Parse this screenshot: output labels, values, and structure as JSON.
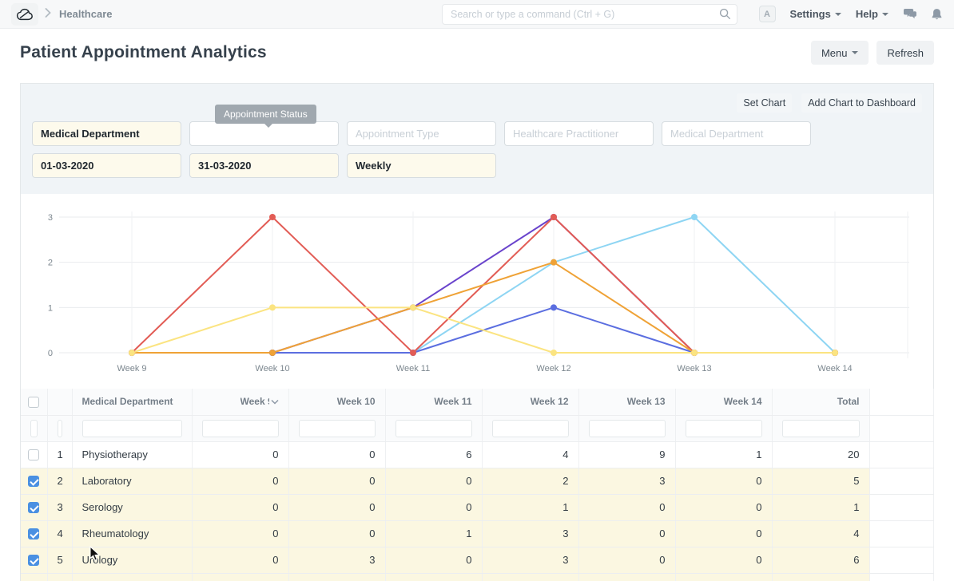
{
  "navbar": {
    "breadcrumb": "Healthcare",
    "search_placeholder": "Search or type a command (Ctrl + G)",
    "avatar_letter": "A",
    "settings_label": "Settings",
    "help_label": "Help",
    "icons": [
      "app-logo-cloud-icon",
      "chevron-right-icon",
      "search-icon",
      "chat-icon",
      "bell-icon"
    ]
  },
  "page_header": {
    "title": "Patient Appointment Analytics",
    "menu_label": "Menu",
    "refresh_label": "Refresh"
  },
  "report_actions": {
    "set_chart_label": "Set Chart",
    "add_chart_label": "Add Chart to Dashboard"
  },
  "tooltip_text": "Appointment Status",
  "filters": {
    "row1": [
      {
        "value": "Medical Department",
        "placeholder": "",
        "style": "filled",
        "name": "filter-medical-department"
      },
      {
        "value": "",
        "placeholder": "",
        "style": "empty",
        "name": "filter-appointment-status"
      },
      {
        "value": "",
        "placeholder": "Appointment Type",
        "style": "empty",
        "name": "filter-appointment-type"
      },
      {
        "value": "",
        "placeholder": "Healthcare Practitioner",
        "style": "empty",
        "name": "filter-healthcare-practitioner"
      },
      {
        "value": "",
        "placeholder": "Medical Department",
        "style": "empty",
        "name": "filter-medical-department-2"
      }
    ],
    "row2": [
      {
        "value": "01-03-2020",
        "placeholder": "",
        "style": "filled",
        "name": "filter-from-date"
      },
      {
        "value": "31-03-2020",
        "placeholder": "",
        "style": "filled",
        "name": "filter-to-date"
      },
      {
        "value": "Weekly",
        "placeholder": "",
        "style": "filled",
        "name": "filter-range-select"
      }
    ]
  },
  "chart_data": {
    "type": "line",
    "title": "",
    "x": [
      "Week 9",
      "Week 10",
      "Week 11",
      "Week 12",
      "Week 13",
      "Week 14"
    ],
    "yticks": [
      0,
      1,
      2,
      3
    ],
    "ylim": [
      0,
      3
    ],
    "grid": true,
    "legend_position": "none",
    "series": [
      {
        "name": "Laboratory",
        "color": "#8ed5f3",
        "values": [
          0,
          0,
          0,
          2,
          3,
          0
        ]
      },
      {
        "name": "Serology",
        "color": "#5b6ee0",
        "values": [
          0,
          0,
          0,
          1,
          0,
          0
        ]
      },
      {
        "name": "Rheumatology",
        "color": "#6a44cc",
        "values": [
          0,
          0,
          1,
          3,
          0,
          0
        ]
      },
      {
        "name": "Urology",
        "color": "#e25c55",
        "values": [
          0,
          3,
          0,
          3,
          0,
          0
        ]
      },
      {
        "name": "series-orange",
        "color": "#efa236",
        "values": [
          0,
          0,
          1,
          2,
          0,
          0
        ]
      },
      {
        "name": "series-yellow",
        "color": "#fbe481",
        "values": [
          0,
          1,
          1,
          0,
          0,
          0
        ]
      }
    ]
  },
  "table": {
    "columns": [
      "",
      "",
      "Medical Department",
      "Week 9",
      "Week 10",
      "Week 11",
      "Week 12",
      "Week 13",
      "Week 14",
      "Total"
    ],
    "sorted_column": "Week 9",
    "rows": [
      {
        "idx": 1,
        "department": "Physiotherapy",
        "checked": false,
        "values": [
          0,
          0,
          6,
          4,
          9,
          1
        ],
        "total": 20
      },
      {
        "idx": 2,
        "department": "Laboratory",
        "checked": true,
        "values": [
          0,
          0,
          0,
          2,
          3,
          0
        ],
        "total": 5
      },
      {
        "idx": 3,
        "department": "Serology",
        "checked": true,
        "values": [
          0,
          0,
          0,
          1,
          0,
          0
        ],
        "total": 1
      },
      {
        "idx": 4,
        "department": "Rheumatology",
        "checked": true,
        "values": [
          0,
          0,
          1,
          3,
          0,
          0
        ],
        "total": 4
      },
      {
        "idx": 5,
        "department": "Urology",
        "checked": true,
        "values": [
          0,
          3,
          0,
          3,
          0,
          0
        ],
        "total": 6
      }
    ]
  }
}
